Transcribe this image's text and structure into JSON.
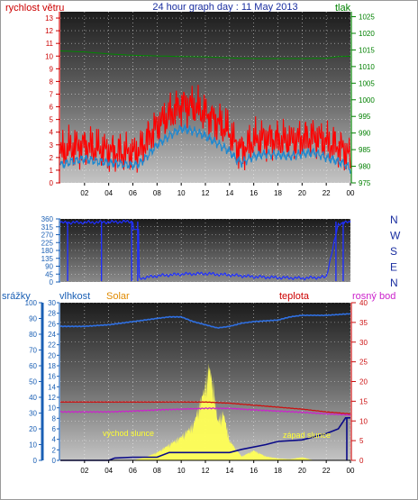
{
  "header": {
    "title": "24 hour graph day : 11 May 2013",
    "left_label": "rychlost větru",
    "right_label": "tlak"
  },
  "colors": {
    "wind_gust": "#ff0000",
    "wind_avg": "#1e88d0",
    "pressure": "#008800",
    "direction": "#1f2fff",
    "humidity": "#2f6fe0",
    "solar": "#ffff55",
    "temperature": "#cc1111",
    "dewpoint": "#cc22cc",
    "rain": "#0a0a88",
    "left_axis_red": "#cc0000",
    "green_axis": "#008000",
    "blue_axis": "#1a5fb4",
    "orange_label": "#e08a00"
  },
  "chart_data": [
    {
      "id": "wind",
      "type": "line",
      "title": "24 hour graph day : 11 May 2013",
      "x_tick_labels": [
        "02",
        "04",
        "06",
        "08",
        "10",
        "12",
        "14",
        "16",
        "18",
        "20",
        "22",
        "00"
      ],
      "left_axis": {
        "label": "rychlost větru",
        "ticks": [
          0,
          1,
          2,
          3,
          4,
          5,
          6,
          7,
          8,
          9,
          10,
          11,
          12,
          13
        ],
        "ylim": [
          0,
          13.5
        ]
      },
      "right_axis": {
        "label": "tlak",
        "ticks": [
          975,
          980,
          985,
          990,
          995,
          1000,
          1005,
          1010,
          1015,
          1020,
          1025
        ],
        "ylim": [
          975,
          1026.5
        ]
      },
      "grid": true,
      "series": [
        {
          "key": "gust",
          "axis": "left",
          "x": [
            0,
            1,
            2,
            3,
            4,
            5,
            6,
            6.5,
            7,
            8,
            9,
            10,
            11,
            12,
            13,
            14,
            14.5,
            15,
            16,
            17,
            18,
            19,
            20,
            21,
            22,
            23,
            23.5,
            24
          ],
          "values": [
            2.3,
            2.8,
            3.0,
            2.7,
            2.5,
            2.4,
            2.3,
            2.5,
            3.2,
            4.5,
            5.3,
            6.2,
            6.0,
            5.5,
            4.8,
            4.0,
            3.0,
            2.6,
            3.3,
            3.5,
            3.4,
            3.3,
            3.5,
            3.6,
            3.2,
            2.9,
            2.6,
            2.0
          ]
        },
        {
          "key": "avg",
          "axis": "left",
          "x": [
            0,
            1,
            2,
            3,
            4,
            5,
            6,
            6.5,
            7,
            8,
            9,
            10,
            11,
            12,
            13,
            14,
            14.5,
            15,
            16,
            17,
            18,
            19,
            20,
            21,
            22,
            23,
            23.5,
            24
          ],
          "values": [
            1.4,
            1.7,
            1.9,
            1.7,
            1.6,
            1.5,
            1.4,
            1.5,
            1.9,
            3.0,
            3.7,
            4.3,
            4.1,
            3.7,
            3.1,
            2.5,
            1.9,
            1.6,
            2.1,
            2.3,
            2.2,
            2.1,
            2.3,
            2.4,
            2.0,
            1.7,
            1.5,
            1.1
          ]
        },
        {
          "key": "pressure",
          "axis": "right",
          "x": [
            0,
            2,
            3,
            4,
            6,
            8,
            10,
            12,
            14,
            16,
            18,
            20,
            22,
            23,
            24
          ],
          "values": [
            1014.7,
            1014.4,
            1014.1,
            1013.8,
            1013.4,
            1013.2,
            1013.0,
            1012.9,
            1012.6,
            1012.4,
            1012.4,
            1012.4,
            1012.5,
            1013.0,
            1013.1
          ]
        }
      ]
    },
    {
      "id": "direction",
      "type": "scatter",
      "left_axis": {
        "ticks": [
          0,
          45,
          90,
          135,
          180,
          225,
          270,
          315,
          360
        ],
        "ylim": [
          0,
          360
        ]
      },
      "compass_labels": [
        "N",
        "W",
        "S",
        "E",
        "N"
      ],
      "series": [
        {
          "key": "wind_direction",
          "x": [
            0,
            2,
            4,
            6,
            6.5,
            8,
            10,
            12,
            14,
            16,
            18,
            20,
            22,
            23,
            23.5,
            24
          ],
          "values": [
            338,
            340,
            342,
            345,
            20,
            35,
            45,
            48,
            40,
            30,
            25,
            22,
            28,
            330,
            340,
            340
          ]
        }
      ]
    },
    {
      "id": "atmosphere",
      "type": "line",
      "header_labels": {
        "rain": "srážky",
        "humidity": "vlhkost",
        "solar": "Solar",
        "temperature": "teplota",
        "dewpoint": "rosný bod"
      },
      "axes": {
        "rain": {
          "ticks": [
            0,
            10,
            20,
            30,
            40,
            50,
            60,
            70,
            80,
            90,
            100
          ],
          "ylim": [
            0,
            100
          ]
        },
        "humidity": {
          "ticks": [
            0,
            2,
            4,
            6,
            8,
            10,
            12,
            14,
            16,
            18,
            20,
            22,
            24,
            26,
            28,
            30
          ],
          "ylim": [
            0,
            30
          ]
        },
        "temperature": {
          "ticks": [
            0,
            5,
            10,
            15,
            20,
            25,
            30,
            35,
            40
          ],
          "ylim": [
            0,
            40
          ]
        }
      },
      "annotations": {
        "sunrise": "východ slunce",
        "sunset": "západ slunce"
      },
      "series": [
        {
          "key": "humidity",
          "axis": "rain",
          "x": [
            0,
            2,
            4,
            6,
            7,
            8,
            9,
            10,
            11,
            12,
            13,
            14,
            15,
            16,
            18,
            19,
            20,
            22,
            24
          ],
          "values": [
            85,
            85,
            86,
            88,
            89,
            90,
            91,
            91,
            88,
            86,
            84,
            85,
            87,
            88,
            89,
            91,
            92,
            92,
            93
          ]
        },
        {
          "key": "temperature",
          "axis": "temperature",
          "x": [
            0,
            2,
            4,
            6,
            8,
            10,
            12,
            14,
            16,
            18,
            20,
            22,
            24
          ],
          "values": [
            14.8,
            14.8,
            14.8,
            14.8,
            14.8,
            14.8,
            14.8,
            14.5,
            14.0,
            13.5,
            13.0,
            12.3,
            11.8
          ]
        },
        {
          "key": "dewpoint",
          "axis": "temperature",
          "x": [
            0,
            2,
            4,
            6,
            8,
            10,
            12,
            14,
            16,
            18,
            20,
            22,
            24
          ],
          "values": [
            12.3,
            12.3,
            12.3,
            12.5,
            12.8,
            13.0,
            13.2,
            13.2,
            12.8,
            12.5,
            12.2,
            11.8,
            11.5
          ]
        },
        {
          "key": "rain",
          "axis": "rain",
          "x": [
            0,
            4,
            4.5,
            6,
            8,
            9,
            12,
            14,
            15,
            17,
            18,
            20,
            21,
            22,
            23,
            23.6,
            24
          ],
          "values": [
            0,
            0,
            1.5,
            2,
            2,
            5,
            5,
            5,
            7,
            10,
            12,
            13,
            15,
            17,
            20,
            27,
            27
          ]
        },
        {
          "key": "solar",
          "axis": "temperature",
          "x": [
            6,
            7,
            8,
            9,
            10,
            11,
            11.5,
            12,
            12.3,
            12.7,
            13,
            13.5,
            14,
            15,
            16,
            17,
            18,
            19,
            20,
            21
          ],
          "values": [
            0,
            0.8,
            2,
            4,
            6,
            9,
            14,
            19,
            24,
            18,
            10,
            12,
            5,
            1,
            2.5,
            1,
            0.5,
            0.3,
            0.8,
            0
          ]
        }
      ]
    }
  ]
}
